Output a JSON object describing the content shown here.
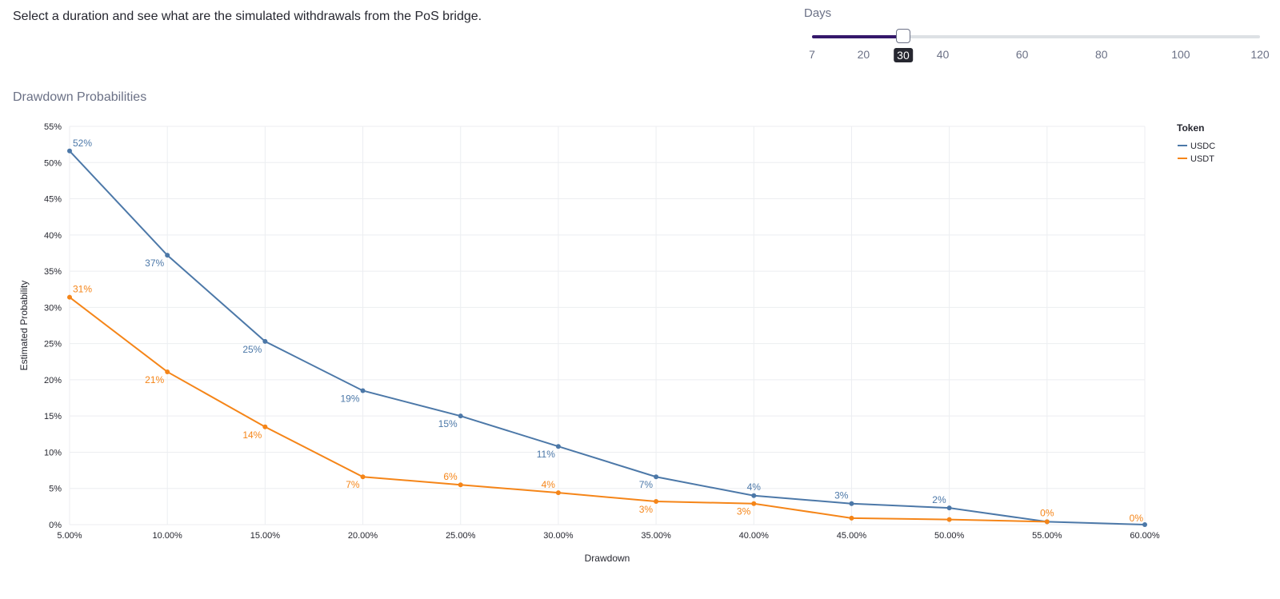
{
  "intro_text": "Select a duration and see what are the simulated withdrawals from the PoS bridge.",
  "slider": {
    "label": "Days",
    "min": 7,
    "max": 120,
    "value": 30,
    "value_label": "30",
    "ticks": [
      "7",
      "20",
      "40",
      "60",
      "80",
      "100",
      "120"
    ],
    "tick_values": [
      7,
      20,
      40,
      60,
      80,
      100,
      120
    ],
    "fill_color": "#35186b"
  },
  "chart_title": "Drawdown Probabilities",
  "chart_data": {
    "type": "line",
    "xlabel": "Drawdown",
    "ylabel": "Estimated Probability",
    "x": [
      5,
      10,
      15,
      20,
      25,
      30,
      35,
      40,
      45,
      50,
      55,
      60
    ],
    "x_tick_labels": [
      "5.00%",
      "10.00%",
      "15.00%",
      "20.00%",
      "25.00%",
      "30.00%",
      "35.00%",
      "40.00%",
      "45.00%",
      "50.00%",
      "55.00%",
      "60.00%"
    ],
    "xlim": [
      5,
      60
    ],
    "ylim": [
      0,
      55
    ],
    "y_ticks": [
      0,
      5,
      10,
      15,
      20,
      25,
      30,
      35,
      40,
      45,
      50,
      55
    ],
    "y_tick_labels": [
      "0%",
      "5%",
      "10%",
      "15%",
      "20%",
      "25%",
      "30%",
      "35%",
      "40%",
      "45%",
      "50%",
      "55%"
    ],
    "grid": true,
    "legend_title": "Token",
    "legend_position": "top-right",
    "series": [
      {
        "name": "USDC",
        "color": "#4c78a8",
        "values": [
          51.6,
          37.2,
          25.3,
          18.5,
          15.0,
          10.8,
          6.6,
          4.0,
          2.9,
          2.3,
          0.4,
          0.0
        ],
        "labels": [
          "52%",
          "37%",
          "25%",
          "19%",
          "15%",
          "11%",
          "7%",
          "4%",
          "3%",
          "2%",
          "",
          ""
        ]
      },
      {
        "name": "USDT",
        "color": "#f58518",
        "values": [
          31.4,
          21.1,
          13.5,
          6.6,
          5.5,
          4.4,
          3.2,
          2.9,
          0.9,
          0.7,
          0.4,
          null
        ],
        "labels": [
          "31%",
          "21%",
          "14%",
          "7%",
          "6%",
          "4%",
          "3%",
          "3%",
          "",
          "",
          "0%",
          "0%"
        ]
      }
    ]
  }
}
